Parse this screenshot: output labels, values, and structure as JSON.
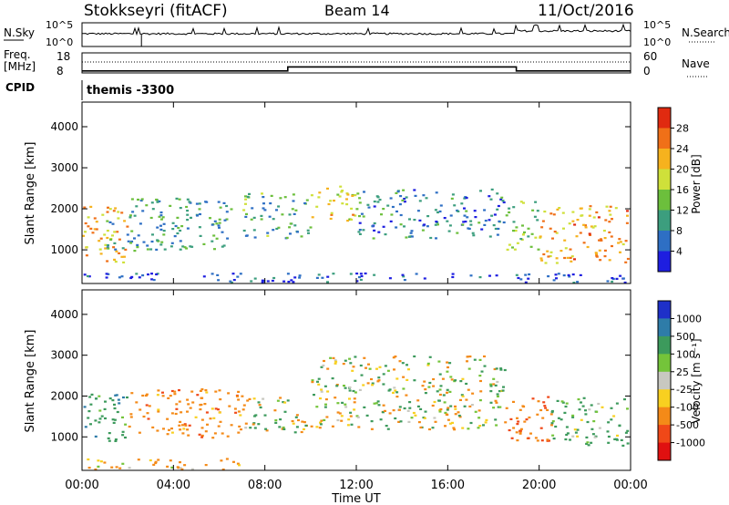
{
  "header": {
    "title": "Stokkseyri (fitACF)",
    "beam": "Beam 14",
    "date": "11/Oct/2016"
  },
  "params": {
    "nsky_label": "N.Sky",
    "nsearch_label": "N.Search",
    "freq_label": "Freq.",
    "freq_unit": "[MHz]",
    "nave_label": "Nave",
    "cpid_label": "CPID",
    "cpid_value": "themis -3300",
    "nsky_ticks": [
      "10^5",
      "10^0"
    ],
    "nsearch_ticks": [
      "10^5",
      "10^0"
    ],
    "freq_ticks": [
      "18",
      "8"
    ],
    "nave_ticks": [
      "60",
      "0"
    ],
    "freq_steps": [
      {
        "t": 0.0,
        "v": 9.0
      },
      {
        "t": 9.0,
        "v": 9.0
      },
      {
        "t": 9.0,
        "v": 11.0
      },
      {
        "t": 19.0,
        "v": 11.0
      },
      {
        "t": 19.0,
        "v": 9.0
      },
      {
        "t": 24.0,
        "v": 9.0
      }
    ]
  },
  "chart_data": [
    {
      "type": "heatmap",
      "name": "power",
      "xlabel": "",
      "ylabel": "Slant Range [km]",
      "xlim": [
        0,
        24
      ],
      "ylim": [
        180,
        4600
      ],
      "yticks": [
        1000,
        2000,
        3000,
        4000
      ],
      "colorbar_label": "Power [dB]",
      "colorbar_ticks": [
        "4",
        "8",
        "12",
        "16",
        "20",
        "24",
        "28"
      ],
      "colorbar_colors": [
        "#1e1ee0",
        "#2e6fc4",
        "#3c9e7e",
        "#6cbf3c",
        "#cfe03a",
        "#f6b21e",
        "#f07018",
        "#e02a10"
      ],
      "echo_regions": [
        {
          "t0": 0.0,
          "t1": 2.0,
          "r0": 700,
          "r1": 2100,
          "p": 24
        },
        {
          "t0": 1.0,
          "t1": 6.5,
          "r0": 1000,
          "r1": 2300,
          "p": 12
        },
        {
          "t0": 7.0,
          "t1": 10.0,
          "r0": 1300,
          "r1": 2400,
          "p": 13
        },
        {
          "t0": 10.0,
          "t1": 12.0,
          "r0": 1700,
          "r1": 2600,
          "p": 22
        },
        {
          "t0": 12.0,
          "t1": 18.5,
          "r0": 1300,
          "r1": 2500,
          "p": 10
        },
        {
          "t0": 18.5,
          "t1": 20.0,
          "r0": 1000,
          "r1": 2200,
          "p": 16
        },
        {
          "t0": 20.0,
          "t1": 24.0,
          "r0": 700,
          "r1": 2100,
          "p": 25
        },
        {
          "t0": 0.0,
          "t1": 24.0,
          "r0": 200,
          "r1": 450,
          "p": 6
        }
      ]
    },
    {
      "type": "heatmap",
      "name": "velocity",
      "xlabel": "Time UT",
      "ylabel": "Slant Range [km]",
      "xlim": [
        0,
        24
      ],
      "ylim": [
        180,
        4600
      ],
      "yticks": [
        1000,
        2000,
        3000,
        4000
      ],
      "xticks": [
        "00:00",
        "04:00",
        "08:00",
        "12:00",
        "16:00",
        "20:00",
        "00:00"
      ],
      "colorbar_label": "Velocity [m s⁻¹]",
      "colorbar_ticks": [
        "1000",
        "500",
        "100",
        "25",
        "-25",
        "-100",
        "-500",
        "-1000"
      ],
      "colorbar_colors": [
        "#1e30c8",
        "#2e7ca8",
        "#3c9a5c",
        "#74c43a",
        "#c8c8c0",
        "#f8d020",
        "#f48a18",
        "#f04818",
        "#e01010"
      ],
      "echo_regions": [
        {
          "t0": 0.0,
          "t1": 2.0,
          "r0": 900,
          "r1": 2100,
          "v": 300
        },
        {
          "t0": 2.0,
          "t1": 7.0,
          "r0": 1000,
          "r1": 2200,
          "v": -300
        },
        {
          "t0": 7.0,
          "t1": 10.0,
          "r0": 1100,
          "r1": 2000,
          "v": 0
        },
        {
          "t0": 10.0,
          "t1": 18.5,
          "r0": 1200,
          "r1": 3000,
          "v": 0
        },
        {
          "t0": 18.5,
          "t1": 20.5,
          "r0": 900,
          "r1": 2100,
          "v": -400
        },
        {
          "t0": 20.5,
          "t1": 24.0,
          "r0": 800,
          "r1": 2000,
          "v": 200
        },
        {
          "t0": 0.0,
          "t1": 7.0,
          "r0": 200,
          "r1": 500,
          "v": -150
        }
      ]
    }
  ]
}
